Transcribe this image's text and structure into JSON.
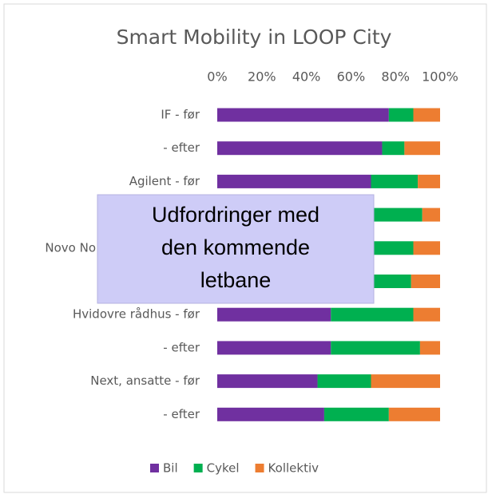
{
  "chart_data": {
    "type": "stacked_bar_horizontal",
    "title": "Smart Mobility in LOOP City",
    "categories": [
      "IF - før",
      "- efter",
      "Agilent - før",
      null,
      "Novo No",
      null,
      "Hvidovre rådhus - før",
      "- efter",
      "Next, ansatte - før",
      "- efter"
    ],
    "series": [
      {
        "name": "Bil",
        "color": "#7030a0",
        "values": [
          77,
          74,
          69,
          70,
          68,
          68,
          51,
          51,
          45,
          48
        ]
      },
      {
        "name": "Cykel",
        "color": "#00b050",
        "values": [
          11,
          10,
          21,
          22,
          20,
          19,
          37,
          40,
          24,
          29
        ]
      },
      {
        "name": "Kollektiv",
        "color": "#ed7d31",
        "values": [
          12,
          16,
          10,
          8,
          12,
          13,
          12,
          9,
          31,
          23
        ]
      }
    ],
    "xlim": [
      0,
      100
    ],
    "xticks": [
      {
        "value": 0,
        "label": "0%"
      },
      {
        "value": 20,
        "label": "20%"
      },
      {
        "value": 40,
        "label": "40%"
      },
      {
        "value": 60,
        "label": "60%"
      },
      {
        "value": 80,
        "label": "80%"
      },
      {
        "value": 100,
        "label": "100%"
      }
    ],
    "legend": "bottom",
    "annotation": [
      "Udfordringer med",
      "den kommende",
      "letbane"
    ]
  }
}
